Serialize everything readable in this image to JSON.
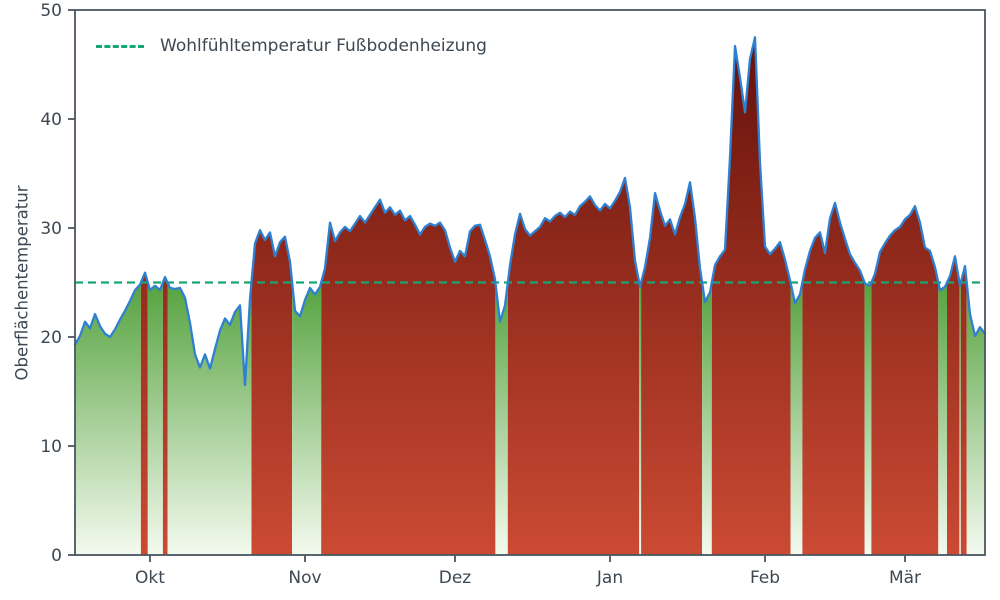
{
  "chart_data": {
    "type": "area",
    "title": "",
    "ylabel": "Oberflächentemperatur",
    "xlabel": "",
    "ylim": [
      0,
      50
    ],
    "y_ticks": [
      0,
      10,
      20,
      30,
      40,
      50
    ],
    "x_tick_labels": [
      "Okt",
      "Nov",
      "Dez",
      "Jan",
      "Feb",
      "Mär"
    ],
    "x_tick_positions": [
      15,
      46,
      76,
      107,
      138,
      166
    ],
    "x_range_days": 182,
    "grid": false,
    "legend_position": "upper left",
    "threshold": {
      "value": 25,
      "label": "Wohlfühltemperatur Fußbodenheizung",
      "style": "dashed"
    },
    "series_name": "Oberflächentemperatur",
    "values": [
      19.3,
      20.1,
      21.4,
      20.8,
      22.1,
      21.0,
      20.3,
      20.0,
      20.7,
      21.6,
      22.4,
      23.3,
      24.3,
      24.8,
      25.9,
      24.3,
      24.7,
      24.3,
      25.5,
      24.5,
      24.4,
      24.5,
      23.6,
      21.3,
      18.4,
      17.2,
      18.4,
      17.1,
      18.9,
      20.6,
      21.7,
      21.1,
      22.3,
      22.9,
      15.6,
      23.5,
      28.6,
      29.8,
      28.9,
      29.6,
      27.4,
      28.7,
      29.2,
      26.9,
      22.4,
      21.9,
      23.4,
      24.5,
      23.9,
      24.6,
      26.3,
      30.5,
      28.8,
      29.6,
      30.1,
      29.7,
      30.4,
      31.1,
      30.5,
      31.2,
      31.9,
      32.6,
      31.4,
      31.9,
      31.2,
      31.6,
      30.7,
      31.1,
      30.3,
      29.4,
      30.1,
      30.4,
      30.2,
      30.5,
      29.8,
      28.2,
      26.9,
      27.9,
      27.4,
      29.7,
      30.2,
      30.3,
      28.9,
      27.4,
      25.3,
      21.4,
      22.9,
      26.6,
      29.4,
      31.3,
      29.9,
      29.3,
      29.7,
      30.1,
      30.9,
      30.6,
      31.1,
      31.4,
      31.0,
      31.5,
      31.2,
      32.0,
      32.4,
      32.9,
      32.1,
      31.6,
      32.2,
      31.8,
      32.5,
      33.3,
      34.6,
      31.9,
      27.0,
      24.6,
      26.4,
      29.1,
      33.2,
      31.6,
      30.2,
      30.8,
      29.4,
      31.0,
      32.2,
      34.2,
      30.9,
      26.3,
      23.2,
      24.1,
      26.6,
      27.4,
      28.0,
      36.5,
      46.7,
      43.8,
      40.6,
      45.5,
      47.5,
      36.0,
      28.3,
      27.6,
      28.1,
      28.7,
      27.1,
      25.2,
      23.1,
      23.9,
      26.2,
      27.9,
      29.1,
      29.6,
      27.7,
      30.9,
      32.3,
      30.5,
      29.0,
      27.6,
      26.8,
      26.1,
      24.9,
      24.7,
      25.8,
      27.8,
      28.6,
      29.3,
      29.8,
      30.1,
      30.8,
      31.2,
      32.0,
      30.5,
      28.2,
      27.9,
      26.4,
      24.3,
      24.6,
      25.6,
      27.4,
      24.7,
      26.5,
      22.1,
      20.1,
      20.9,
      20.3
    ],
    "colors": {
      "line": "#2f80d0",
      "threshold": "#17a673",
      "fill_above_top": "#64110b",
      "fill_above_bottom": "#cb4a33",
      "fill_below_top": "#4f9f38",
      "fill_below_bottom": "#f4faef",
      "axis": "#4a5560",
      "text": "#3d4852"
    }
  }
}
